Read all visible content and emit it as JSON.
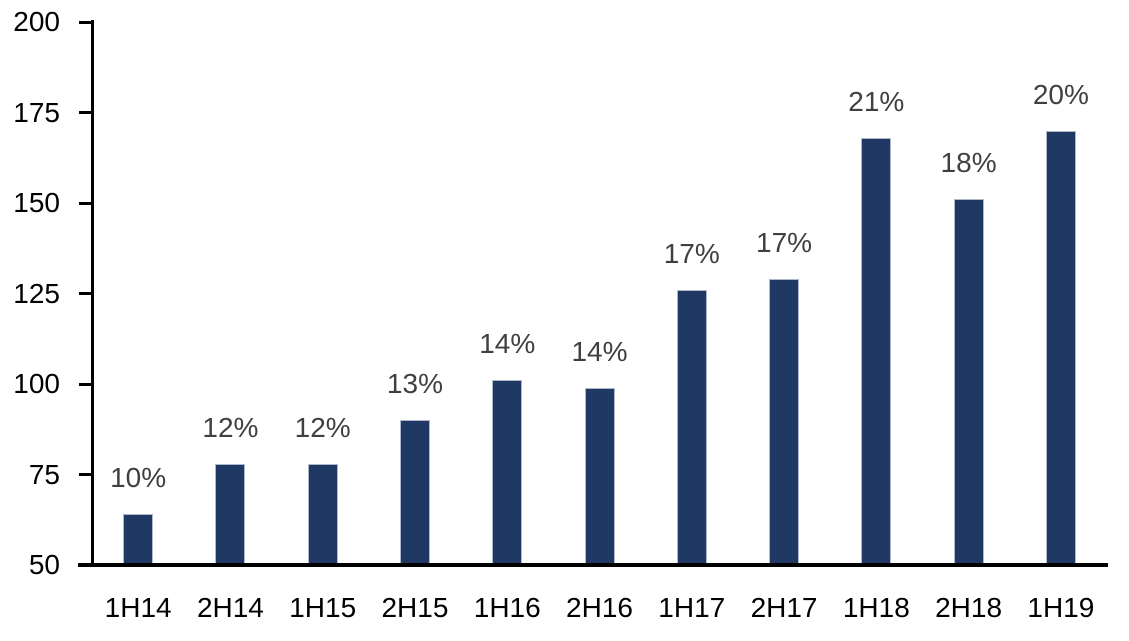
{
  "chart_data": {
    "type": "bar",
    "title": "",
    "xlabel": "",
    "ylabel": "",
    "categories": [
      "1H14",
      "2H14",
      "1H15",
      "2H15",
      "1H16",
      "2H16",
      "1H17",
      "2H17",
      "1H18",
      "2H18",
      "1H19"
    ],
    "values": [
      64,
      78,
      78,
      90,
      101,
      99,
      126,
      129,
      168,
      151,
      170
    ],
    "data_labels": [
      "10%",
      "12%",
      "12%",
      "13%",
      "14%",
      "14%",
      "17%",
      "17%",
      "21%",
      "18%",
      "20%"
    ],
    "ylim": [
      50,
      200
    ],
    "yticks": [
      200,
      175,
      150,
      125,
      100,
      75,
      50
    ],
    "grid": false,
    "legend_position": "none",
    "colors": {
      "bar_fill": "#1F3864",
      "bar_border": "#AEB9CA",
      "data_label": "#404040",
      "axis": "#000000",
      "tick_label": "#000000",
      "background": "#FFFFFF"
    }
  }
}
